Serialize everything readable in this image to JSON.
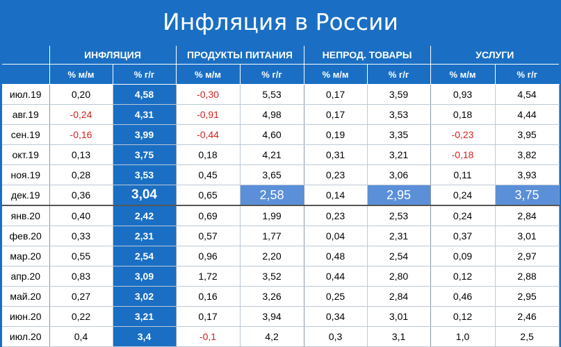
{
  "title": "Инфляция в России",
  "groups": [
    "ИНФЛЯЦИЯ",
    "ПРОДУКТЫ ПИТАНИЯ",
    "НЕПРОД. ТОВАРЫ",
    "УСЛУГИ"
  ],
  "subheaders": [
    "% м/м",
    "% г/г",
    "% м/м",
    "% г/г",
    "% м/м",
    "% г/г",
    "% м/м",
    "% г/г"
  ],
  "rows": [
    {
      "date": "июл.19",
      "cells": [
        "0,20",
        "4,58",
        "-0,30",
        "5,53",
        "0,17",
        "3,59",
        "0,93",
        "4,54"
      ]
    },
    {
      "date": "авг.19",
      "cells": [
        "-0,24",
        "4,31",
        "-0,91",
        "4,98",
        "0,17",
        "3,53",
        "0,18",
        "4,44"
      ]
    },
    {
      "date": "сен.19",
      "cells": [
        "-0,16",
        "3,99",
        "-0,44",
        "4,60",
        "0,19",
        "3,35",
        "-0,23",
        "3,95"
      ]
    },
    {
      "date": "окт.19",
      "cells": [
        "0,13",
        "3,75",
        "0,18",
        "4,21",
        "0,31",
        "3,21",
        "-0,18",
        "3,82"
      ]
    },
    {
      "date": "ноя.19",
      "cells": [
        "0,28",
        "3,53",
        "0,45",
        "3,65",
        "0,23",
        "3,06",
        "0,11",
        "3,93"
      ]
    },
    {
      "date": "дек.19",
      "cells": [
        "0,36",
        "3,04",
        "0,65",
        "2,58",
        "0,14",
        "2,95",
        "0,24",
        "3,75"
      ]
    },
    {
      "date": "янв.20",
      "cells": [
        "0,40",
        "2,42",
        "0,69",
        "1,99",
        "0,23",
        "2,53",
        "0,24",
        "2,84"
      ]
    },
    {
      "date": "фев.20",
      "cells": [
        "0,33",
        "2,31",
        "0,57",
        "1,77",
        "0,04",
        "2,31",
        "0,37",
        "3,01"
      ]
    },
    {
      "date": "мар.20",
      "cells": [
        "0,55",
        "2,54",
        "0,96",
        "2,20",
        "0,48",
        "2,54",
        "0,09",
        "2,97"
      ]
    },
    {
      "date": "апр.20",
      "cells": [
        "0,83",
        "3,09",
        "1,72",
        "3,52",
        "0,44",
        "2,80",
        "0,12",
        "2,88"
      ]
    },
    {
      "date": "май.20",
      "cells": [
        "0,27",
        "3,02",
        "0,16",
        "3,26",
        "0,25",
        "2,84",
        "0,46",
        "2,95"
      ]
    },
    {
      "date": "июн.20",
      "cells": [
        "0,22",
        "3,21",
        "0,17",
        "3,94",
        "0,34",
        "3,01",
        "0,12",
        "2,46"
      ]
    },
    {
      "date": "июл.20",
      "cells": [
        "0,4",
        "3,4",
        "-0,1",
        "4,2",
        "0,3",
        "3,1",
        "1,0",
        "2,5"
      ]
    }
  ],
  "colors": {
    "header_blue": "#1a6fc4",
    "highlight_blue": "#5b8fd8",
    "negative_red": "#d42020"
  }
}
